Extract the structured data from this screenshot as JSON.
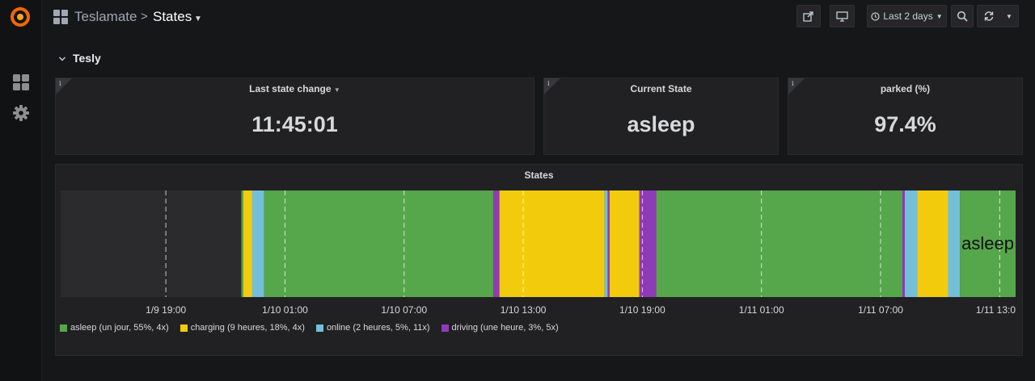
{
  "breadcrumb": {
    "root": "Teslamate",
    "separator": ">",
    "title": "States"
  },
  "toolbar": {
    "time_range_label": "Last 2 days"
  },
  "row": {
    "title": "Tesly"
  },
  "panels": {
    "last_state_change": {
      "title": "Last state change",
      "value": "11:45:01"
    },
    "current_state": {
      "title": "Current State",
      "value": "asleep"
    },
    "parked": {
      "title": "parked (%)",
      "value": "97.4%"
    }
  },
  "chart_data": {
    "type": "state-timeline",
    "title": "States",
    "x_ticks": [
      "1/9 19:00",
      "1/10 01:00",
      "1/10 07:00",
      "1/10 13:00",
      "1/10 19:00",
      "1/11 01:00",
      "1/11 07:00",
      "1/11 13:00"
    ],
    "x_range_hours": [
      -5.3,
      42.8
    ],
    "current_label": "asleep",
    "states": {
      "asleep": {
        "color": "#56a64b"
      },
      "charging": {
        "color": "#f2cc0c"
      },
      "online": {
        "color": "#73bfd9"
      },
      "driving": {
        "color": "#8f3bb8"
      }
    },
    "segments": [
      {
        "state": "asleep",
        "start": 3.8,
        "end": 3.9
      },
      {
        "state": "charging",
        "start": 3.9,
        "end": 4.35
      },
      {
        "state": "online",
        "start": 4.35,
        "end": 4.95
      },
      {
        "state": "asleep",
        "start": 4.95,
        "end": 16.5
      },
      {
        "state": "driving",
        "start": 16.5,
        "end": 16.8
      },
      {
        "state": "charging",
        "start": 16.8,
        "end": 22.1
      },
      {
        "state": "online",
        "start": 22.1,
        "end": 22.25
      },
      {
        "state": "driving",
        "start": 22.25,
        "end": 22.35
      },
      {
        "state": "charging",
        "start": 22.35,
        "end": 23.85
      },
      {
        "state": "driving",
        "start": 23.85,
        "end": 24.7
      },
      {
        "state": "asleep",
        "start": 24.7,
        "end": 37.1
      },
      {
        "state": "driving",
        "start": 37.1,
        "end": 37.22
      },
      {
        "state": "online",
        "start": 37.22,
        "end": 37.85
      },
      {
        "state": "charging",
        "start": 37.85,
        "end": 39.4
      },
      {
        "state": "online",
        "start": 39.4,
        "end": 40.0
      },
      {
        "state": "asleep",
        "start": 40.0,
        "end": 42.8
      }
    ],
    "legend": [
      {
        "state": "asleep",
        "label": "asleep (un jour, 55%, 4x)"
      },
      {
        "state": "charging",
        "label": "charging (9 heures, 18%, 4x)"
      },
      {
        "state": "online",
        "label": "online (2 heures, 5%, 11x)"
      },
      {
        "state": "driving",
        "label": "driving (une heure, 3%, 5x)"
      }
    ]
  }
}
